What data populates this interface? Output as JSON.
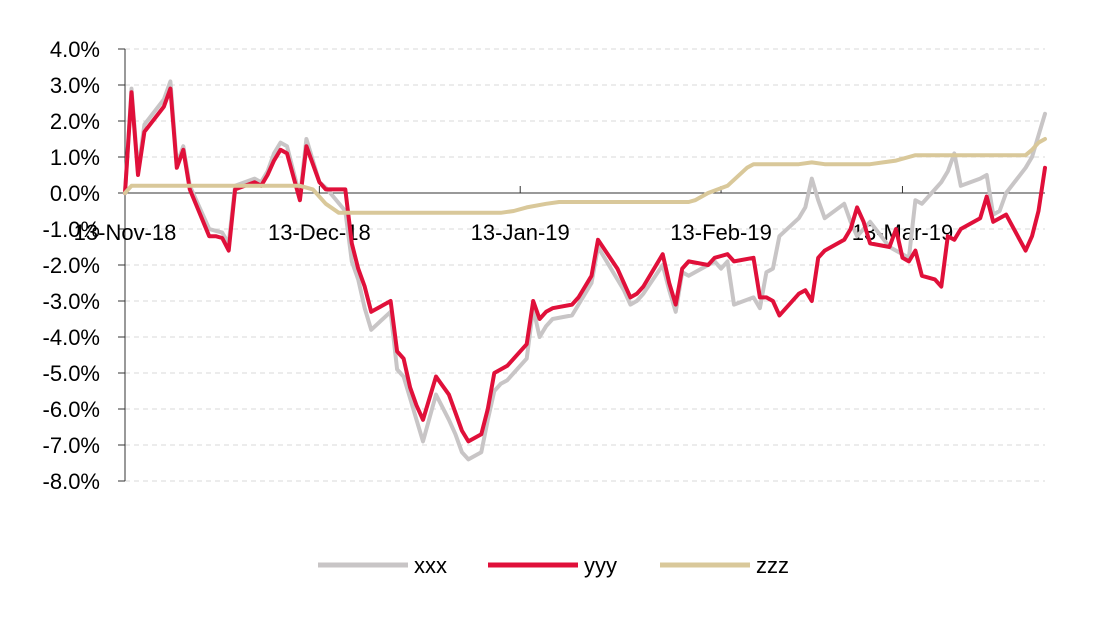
{
  "chart_data": {
    "type": "line",
    "title": "",
    "xlabel": "",
    "ylabel": "",
    "x_range": [
      "2018-11-13",
      "2019-04-04"
    ],
    "ylim": [
      -8.0,
      4.0
    ],
    "y_ticks": [
      "4.0%",
      "3.0%",
      "2.0%",
      "1.0%",
      "0.0%",
      "-1.0%",
      "-2.0%",
      "-3.0%",
      "-4.0%",
      "-5.0%",
      "-6.0%",
      "-7.0%",
      "-8.0%"
    ],
    "y_tick_values": [
      4,
      3,
      2,
      1,
      0,
      -1,
      -2,
      -3,
      -4,
      -5,
      -6,
      -7,
      -8
    ],
    "x_ticks": [
      {
        "date": "2018-11-13",
        "label": "13-Nov-18"
      },
      {
        "date": "2018-12-13",
        "label": "13-Dec-18"
      },
      {
        "date": "2019-01-13",
        "label": "13-Jan-19"
      },
      {
        "date": "2019-02-13",
        "label": "13-Feb-19"
      },
      {
        "date": "2019-03-13",
        "label": "13-Mar-19"
      }
    ],
    "grid": "horizontal dashed",
    "legend_position": "bottom",
    "series": [
      {
        "name": "xxx",
        "color": "#c8c5c6",
        "points": [
          [
            "2018-11-13",
            0.0
          ],
          [
            "2018-11-14",
            2.9
          ],
          [
            "2018-11-15",
            0.6
          ],
          [
            "2018-11-16",
            1.9
          ],
          [
            "2018-11-19",
            2.6
          ],
          [
            "2018-11-20",
            3.1
          ],
          [
            "2018-11-21",
            0.8
          ],
          [
            "2018-11-22",
            1.3
          ],
          [
            "2018-11-23",
            0.2
          ],
          [
            "2018-11-26",
            -1.0
          ],
          [
            "2018-11-27",
            -1.05
          ],
          [
            "2018-11-28",
            -1.1
          ],
          [
            "2018-11-29",
            -1.4
          ],
          [
            "2018-11-30",
            0.2
          ],
          [
            "2018-12-03",
            0.4
          ],
          [
            "2018-12-04",
            0.3
          ],
          [
            "2018-12-05",
            0.6
          ],
          [
            "2018-12-06",
            1.1
          ],
          [
            "2018-12-07",
            1.4
          ],
          [
            "2018-12-08",
            1.3
          ],
          [
            "2018-12-10",
            -0.1
          ],
          [
            "2018-12-11",
            1.5
          ],
          [
            "2018-12-12",
            0.9
          ],
          [
            "2018-12-13",
            0.3
          ],
          [
            "2018-12-14",
            0.15
          ],
          [
            "2018-12-17",
            -0.5
          ],
          [
            "2018-12-18",
            -1.9
          ],
          [
            "2018-12-19",
            -2.4
          ],
          [
            "2018-12-20",
            -3.2
          ],
          [
            "2018-12-21",
            -3.8
          ],
          [
            "2018-12-24",
            -3.3
          ],
          [
            "2018-12-25",
            -4.9
          ],
          [
            "2018-12-26",
            -5.1
          ],
          [
            "2018-12-27",
            -5.7
          ],
          [
            "2018-12-28",
            -6.3
          ],
          [
            "2018-12-29",
            -6.9
          ],
          [
            "2018-12-31",
            -5.6
          ],
          [
            "2019-01-02",
            -6.3
          ],
          [
            "2019-01-03",
            -6.7
          ],
          [
            "2019-01-04",
            -7.2
          ],
          [
            "2019-01-05",
            -7.4
          ],
          [
            "2019-01-07",
            -7.2
          ],
          [
            "2019-01-08",
            -6.3
          ],
          [
            "2019-01-09",
            -5.5
          ],
          [
            "2019-01-10",
            -5.3
          ],
          [
            "2019-01-11",
            -5.2
          ],
          [
            "2019-01-14",
            -4.6
          ],
          [
            "2019-01-15",
            -3.2
          ],
          [
            "2019-01-16",
            -4.0
          ],
          [
            "2019-01-17",
            -3.7
          ],
          [
            "2019-01-18",
            -3.5
          ],
          [
            "2019-01-21",
            -3.4
          ],
          [
            "2019-01-22",
            -3.1
          ],
          [
            "2019-01-23",
            -2.8
          ],
          [
            "2019-01-24",
            -2.5
          ],
          [
            "2019-01-25",
            -1.5
          ],
          [
            "2019-01-28",
            -2.4
          ],
          [
            "2019-01-29",
            -2.7
          ],
          [
            "2019-01-30",
            -3.1
          ],
          [
            "2019-01-31",
            -3.0
          ],
          [
            "2019-02-01",
            -2.8
          ],
          [
            "2019-02-04",
            -2.0
          ],
          [
            "2019-02-05",
            -2.7
          ],
          [
            "2019-02-06",
            -3.3
          ],
          [
            "2019-02-07",
            -2.2
          ],
          [
            "2019-02-08",
            -2.3
          ],
          [
            "2019-02-11",
            -2.0
          ],
          [
            "2019-02-12",
            -1.9
          ],
          [
            "2019-02-13",
            -2.1
          ],
          [
            "2019-02-14",
            -1.9
          ],
          [
            "2019-02-15",
            -3.1
          ],
          [
            "2019-02-18",
            -2.9
          ],
          [
            "2019-02-19",
            -3.2
          ],
          [
            "2019-02-20",
            -2.2
          ],
          [
            "2019-02-21",
            -2.1
          ],
          [
            "2019-02-22",
            -1.2
          ],
          [
            "2019-02-25",
            -0.7
          ],
          [
            "2019-02-26",
            -0.4
          ],
          [
            "2019-02-27",
            0.4
          ],
          [
            "2019-02-28",
            -0.2
          ],
          [
            "2019-03-01",
            -0.7
          ],
          [
            "2019-03-04",
            -0.3
          ],
          [
            "2019-03-05",
            -0.8
          ],
          [
            "2019-03-06",
            -1.2
          ],
          [
            "2019-03-07",
            -1.0
          ],
          [
            "2019-03-08",
            -0.8
          ],
          [
            "2019-03-11",
            -1.5
          ],
          [
            "2019-03-12",
            -1.6
          ],
          [
            "2019-03-13",
            -1.7
          ],
          [
            "2019-03-14",
            -1.8
          ],
          [
            "2019-03-15",
            -0.2
          ],
          [
            "2019-03-16",
            -0.3
          ],
          [
            "2019-03-18",
            0.1
          ],
          [
            "2019-03-19",
            0.3
          ],
          [
            "2019-03-20",
            0.6
          ],
          [
            "2019-03-21",
            1.1
          ],
          [
            "2019-03-22",
            0.2
          ],
          [
            "2019-03-25",
            0.4
          ],
          [
            "2019-03-26",
            0.5
          ],
          [
            "2019-03-27",
            -0.6
          ],
          [
            "2019-03-28",
            -0.5
          ],
          [
            "2019-03-29",
            0.0
          ],
          [
            "2019-04-01",
            0.7
          ],
          [
            "2019-04-02",
            1.0
          ],
          [
            "2019-04-03",
            1.6
          ],
          [
            "2019-04-04",
            2.2
          ]
        ]
      },
      {
        "name": "yyy",
        "color": "#e0103a",
        "points": [
          [
            "2018-11-13",
            0.0
          ],
          [
            "2018-11-14",
            2.8
          ],
          [
            "2018-11-15",
            0.5
          ],
          [
            "2018-11-16",
            1.7
          ],
          [
            "2018-11-19",
            2.4
          ],
          [
            "2018-11-20",
            2.9
          ],
          [
            "2018-11-21",
            0.7
          ],
          [
            "2018-11-22",
            1.2
          ],
          [
            "2018-11-23",
            0.1
          ],
          [
            "2018-11-26",
            -1.2
          ],
          [
            "2018-11-27",
            -1.2
          ],
          [
            "2018-11-28",
            -1.25
          ],
          [
            "2018-11-29",
            -1.6
          ],
          [
            "2018-11-30",
            0.1
          ],
          [
            "2018-12-03",
            0.3
          ],
          [
            "2018-12-04",
            0.2
          ],
          [
            "2018-12-05",
            0.5
          ],
          [
            "2018-12-06",
            0.9
          ],
          [
            "2018-12-07",
            1.2
          ],
          [
            "2018-12-08",
            1.1
          ],
          [
            "2018-12-10",
            -0.2
          ],
          [
            "2018-12-11",
            1.3
          ],
          [
            "2018-12-12",
            0.8
          ],
          [
            "2018-12-13",
            0.3
          ],
          [
            "2018-12-14",
            0.1
          ],
          [
            "2018-12-17",
            0.1
          ],
          [
            "2018-12-18",
            -1.4
          ],
          [
            "2018-12-19",
            -2.1
          ],
          [
            "2018-12-20",
            -2.6
          ],
          [
            "2018-12-21",
            -3.3
          ],
          [
            "2018-12-24",
            -3.0
          ],
          [
            "2018-12-25",
            -4.4
          ],
          [
            "2018-12-26",
            -4.6
          ],
          [
            "2018-12-27",
            -5.4
          ],
          [
            "2018-12-28",
            -5.9
          ],
          [
            "2018-12-29",
            -6.3
          ],
          [
            "2018-12-31",
            -5.1
          ],
          [
            "2019-01-02",
            -5.6
          ],
          [
            "2019-01-03",
            -6.1
          ],
          [
            "2019-01-04",
            -6.6
          ],
          [
            "2019-01-05",
            -6.9
          ],
          [
            "2019-01-07",
            -6.7
          ],
          [
            "2019-01-08",
            -6.0
          ],
          [
            "2019-01-09",
            -5.0
          ],
          [
            "2019-01-10",
            -4.9
          ],
          [
            "2019-01-11",
            -4.8
          ],
          [
            "2019-01-14",
            -4.2
          ],
          [
            "2019-01-15",
            -3.0
          ],
          [
            "2019-01-16",
            -3.5
          ],
          [
            "2019-01-17",
            -3.3
          ],
          [
            "2019-01-18",
            -3.2
          ],
          [
            "2019-01-21",
            -3.1
          ],
          [
            "2019-01-22",
            -2.9
          ],
          [
            "2019-01-23",
            -2.6
          ],
          [
            "2019-01-24",
            -2.3
          ],
          [
            "2019-01-25",
            -1.3
          ],
          [
            "2019-01-28",
            -2.1
          ],
          [
            "2019-01-29",
            -2.5
          ],
          [
            "2019-01-30",
            -2.9
          ],
          [
            "2019-01-31",
            -2.8
          ],
          [
            "2019-02-01",
            -2.6
          ],
          [
            "2019-02-04",
            -1.7
          ],
          [
            "2019-02-05",
            -2.5
          ],
          [
            "2019-02-06",
            -3.1
          ],
          [
            "2019-02-07",
            -2.1
          ],
          [
            "2019-02-08",
            -1.9
          ],
          [
            "2019-02-11",
            -2.0
          ],
          [
            "2019-02-12",
            -1.8
          ],
          [
            "2019-02-13",
            -1.75
          ],
          [
            "2019-02-14",
            -1.7
          ],
          [
            "2019-02-15",
            -1.9
          ],
          [
            "2019-02-18",
            -1.8
          ],
          [
            "2019-02-19",
            -2.9
          ],
          [
            "2019-02-20",
            -2.9
          ],
          [
            "2019-02-21",
            -3.0
          ],
          [
            "2019-02-22",
            -3.4
          ],
          [
            "2019-02-25",
            -2.8
          ],
          [
            "2019-02-26",
            -2.7
          ],
          [
            "2019-02-27",
            -3.0
          ],
          [
            "2019-02-28",
            -1.8
          ],
          [
            "2019-03-01",
            -1.6
          ],
          [
            "2019-03-04",
            -1.3
          ],
          [
            "2019-03-05",
            -1.0
          ],
          [
            "2019-03-06",
            -0.4
          ],
          [
            "2019-03-07",
            -0.8
          ],
          [
            "2019-03-08",
            -1.4
          ],
          [
            "2019-03-11",
            -1.5
          ],
          [
            "2019-03-12",
            -1.0
          ],
          [
            "2019-03-13",
            -1.8
          ],
          [
            "2019-03-14",
            -1.9
          ],
          [
            "2019-03-15",
            -1.6
          ],
          [
            "2019-03-16",
            -2.3
          ],
          [
            "2019-03-18",
            -2.4
          ],
          [
            "2019-03-19",
            -2.6
          ],
          [
            "2019-03-20",
            -1.2
          ],
          [
            "2019-03-21",
            -1.3
          ],
          [
            "2019-03-22",
            -1.0
          ],
          [
            "2019-03-25",
            -0.7
          ],
          [
            "2019-03-26",
            -0.1
          ],
          [
            "2019-03-27",
            -0.8
          ],
          [
            "2019-03-28",
            -0.7
          ],
          [
            "2019-03-29",
            -0.6
          ],
          [
            "2019-04-01",
            -1.6
          ],
          [
            "2019-04-02",
            -1.2
          ],
          [
            "2019-04-03",
            -0.5
          ],
          [
            "2019-04-04",
            0.7
          ]
        ]
      },
      {
        "name": "zzz",
        "color": "#d9c89a",
        "points": [
          [
            "2018-11-13",
            0.0
          ],
          [
            "2018-11-14",
            0.2
          ],
          [
            "2018-11-20",
            0.2
          ],
          [
            "2018-11-25",
            0.2
          ],
          [
            "2018-12-01",
            0.2
          ],
          [
            "2018-12-07",
            0.2
          ],
          [
            "2018-12-10",
            0.2
          ],
          [
            "2018-12-12",
            0.1
          ],
          [
            "2018-12-14",
            -0.3
          ],
          [
            "2018-12-16",
            -0.55
          ],
          [
            "2018-12-18",
            -0.55
          ],
          [
            "2018-12-25",
            -0.55
          ],
          [
            "2019-01-01",
            -0.55
          ],
          [
            "2019-01-10",
            -0.55
          ],
          [
            "2019-01-12",
            -0.5
          ],
          [
            "2019-01-14",
            -0.4
          ],
          [
            "2019-01-17",
            -0.3
          ],
          [
            "2019-01-19",
            -0.25
          ],
          [
            "2019-01-25",
            -0.25
          ],
          [
            "2019-02-01",
            -0.25
          ],
          [
            "2019-02-08",
            -0.25
          ],
          [
            "2019-02-09",
            -0.2
          ],
          [
            "2019-02-11",
            0.0
          ],
          [
            "2019-02-14",
            0.2
          ],
          [
            "2019-02-17",
            0.7
          ],
          [
            "2019-02-18",
            0.8
          ],
          [
            "2019-02-25",
            0.8
          ],
          [
            "2019-02-27",
            0.85
          ],
          [
            "2019-03-01",
            0.8
          ],
          [
            "2019-03-04",
            0.8
          ],
          [
            "2019-03-08",
            0.8
          ],
          [
            "2019-03-10",
            0.85
          ],
          [
            "2019-03-12",
            0.9
          ],
          [
            "2019-03-14",
            1.0
          ],
          [
            "2019-03-15",
            1.05
          ],
          [
            "2019-03-20",
            1.05
          ],
          [
            "2019-03-25",
            1.05
          ],
          [
            "2019-03-30",
            1.05
          ],
          [
            "2019-04-01",
            1.05
          ],
          [
            "2019-04-02",
            1.2
          ],
          [
            "2019-04-03",
            1.4
          ],
          [
            "2019-04-04",
            1.5
          ]
        ]
      }
    ]
  }
}
